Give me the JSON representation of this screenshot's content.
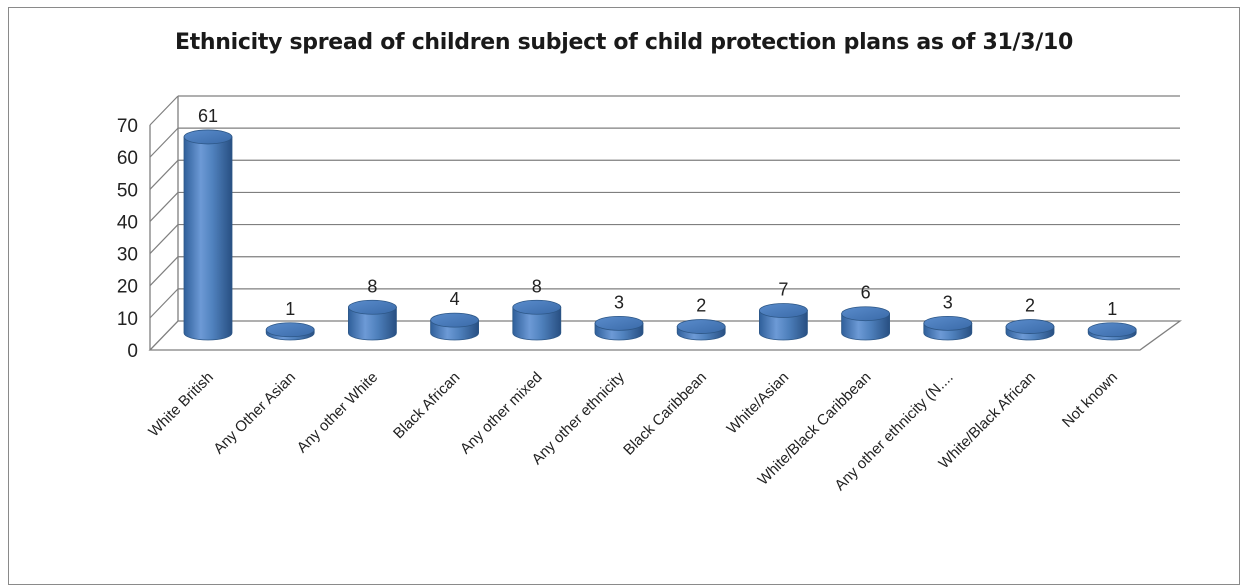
{
  "chart_data": {
    "type": "bar",
    "title": "Ethnicity spread of children subject of child protection plans as of 31/3/10",
    "categories": [
      "White British",
      "Any Other Asian",
      "Any other White",
      "Black African",
      "Any other mixed",
      "Any other ethnicity",
      "Black Caribbean",
      "White/Asian",
      "White/Black Caribbean",
      "Any other ethnicity (N....",
      "White/Black African",
      "Not known"
    ],
    "values": [
      61,
      1,
      8,
      4,
      8,
      3,
      2,
      7,
      6,
      3,
      2,
      1
    ],
    "ylim": [
      0,
      70
    ],
    "yticks": [
      0,
      10,
      20,
      30,
      40,
      50,
      60,
      70
    ],
    "grid": true,
    "legend": "none",
    "style": "3d-cylinder",
    "bar_color": "#4f81bd"
  }
}
